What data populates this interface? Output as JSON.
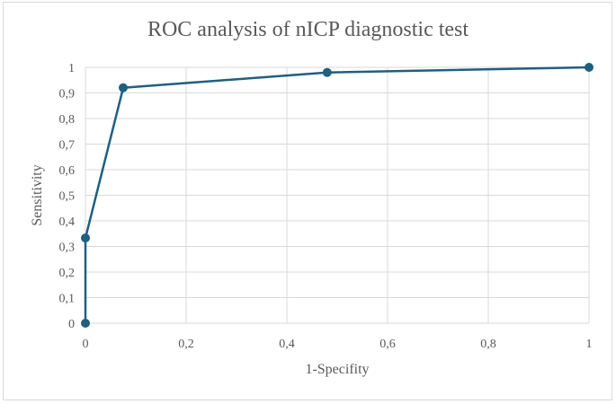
{
  "chart_data": {
    "type": "line",
    "title": "ROC analysis  of nICP diagnostic  test",
    "xlabel": "1-Specifity",
    "ylabel": "Sensitivity",
    "xlim": [
      0,
      1
    ],
    "ylim": [
      0,
      1
    ],
    "grid": true,
    "legend": null,
    "x_ticks": [
      "0",
      "0,2",
      "0,4",
      "0,6",
      "0,8",
      "1"
    ],
    "y_ticks": [
      "0",
      "0,1",
      "0,2",
      "0,3",
      "0,4",
      "0,5",
      "0,6",
      "0,7",
      "0,8",
      "0,9",
      "1"
    ],
    "series": [
      {
        "name": "ROC",
        "color": "#1f5f80",
        "x": [
          0,
          0,
          0.075,
          0.48,
          1
        ],
        "y": [
          0,
          0.333,
          0.92,
          0.98,
          1
        ]
      }
    ]
  }
}
